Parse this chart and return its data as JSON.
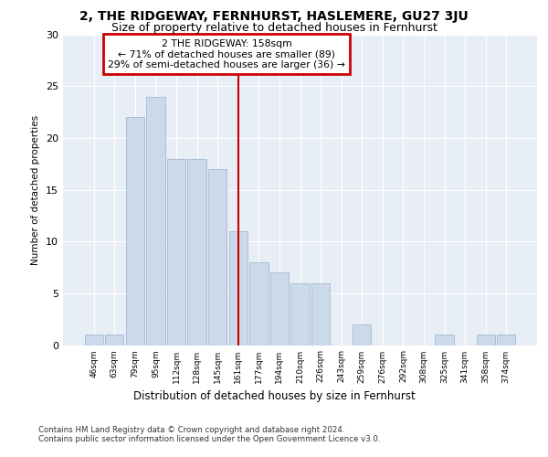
{
  "title": "2, THE RIDGEWAY, FERNHURST, HASLEMERE, GU27 3JU",
  "subtitle": "Size of property relative to detached houses in Fernhurst",
  "xlabel": "Distribution of detached houses by size in Fernhurst",
  "ylabel": "Number of detached properties",
  "categories": [
    "46sqm",
    "63sqm",
    "79sqm",
    "95sqm",
    "112sqm",
    "128sqm",
    "145sqm",
    "161sqm",
    "177sqm",
    "194sqm",
    "210sqm",
    "226sqm",
    "243sqm",
    "259sqm",
    "276sqm",
    "292sqm",
    "308sqm",
    "325sqm",
    "341sqm",
    "358sqm",
    "374sqm"
  ],
  "values": [
    1,
    1,
    22,
    24,
    18,
    18,
    17,
    11,
    8,
    7,
    6,
    6,
    0,
    2,
    0,
    0,
    0,
    1,
    0,
    1,
    1
  ],
  "bar_color": "#ccd9ea",
  "bar_edge_color": "#aabfd8",
  "property_label": "2 THE RIDGEWAY: 158sqm",
  "annotation_line1": "← 71% of detached houses are smaller (89)",
  "annotation_line2": "29% of semi-detached houses are larger (36) →",
  "annotation_box_color": "#cc0000",
  "vline_color": "#cc0000",
  "vline_x_index": 7,
  "ylim": [
    0,
    30
  ],
  "yticks": [
    0,
    5,
    10,
    15,
    20,
    25,
    30
  ],
  "grid_color": "#ffffff",
  "background_color": "#e8eef5",
  "footer_line1": "Contains HM Land Registry data © Crown copyright and database right 2024.",
  "footer_line2": "Contains public sector information licensed under the Open Government Licence v3.0."
}
